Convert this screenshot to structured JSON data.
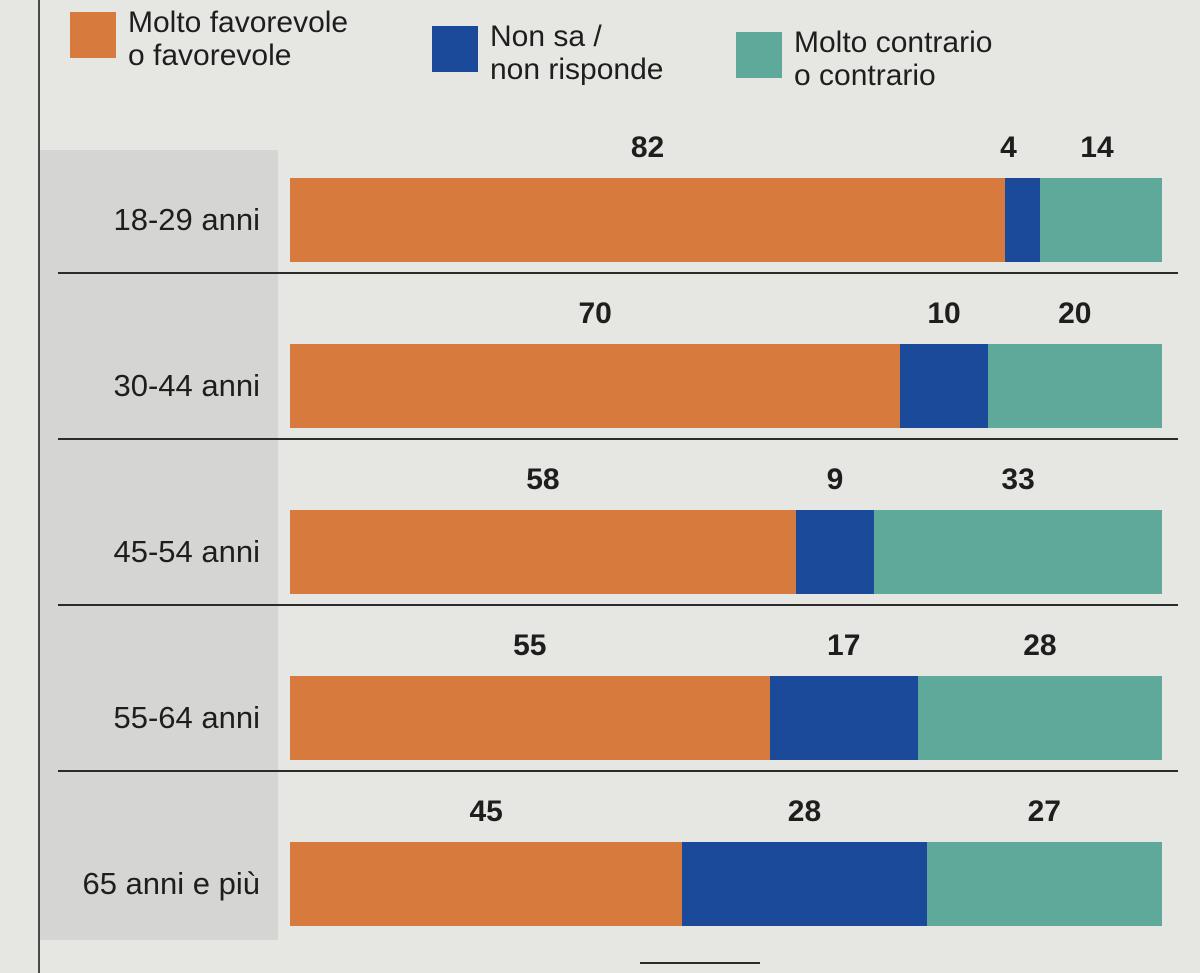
{
  "legend": [
    {
      "label": "Molto favorevole\no favorevole",
      "color": "#d67a3e"
    },
    {
      "label": "Non sa /\nnon risponde",
      "color": "#1b4a9a"
    },
    {
      "label": "Molto contrario\no contrario",
      "color": "#5ea99a"
    }
  ],
  "chart_data": {
    "type": "bar",
    "orientation": "horizontal",
    "stacked": true,
    "unit": "%",
    "categories": [
      "18-29 anni",
      "30-44 anni",
      "45-54 anni",
      "55-64 anni",
      "65 anni e più"
    ],
    "series": [
      {
        "name": "Molto favorevole o favorevole",
        "values": [
          82,
          70,
          58,
          55,
          45
        ],
        "color": "#d67a3e"
      },
      {
        "name": "Non sa / non risponde",
        "values": [
          4,
          10,
          9,
          17,
          28
        ],
        "color": "#1b4a9a"
      },
      {
        "name": "Molto contrario o contrario",
        "values": [
          14,
          20,
          33,
          28,
          27
        ],
        "color": "#5ea99a"
      }
    ],
    "xlim": [
      0,
      100
    ],
    "legend_position": "top"
  }
}
